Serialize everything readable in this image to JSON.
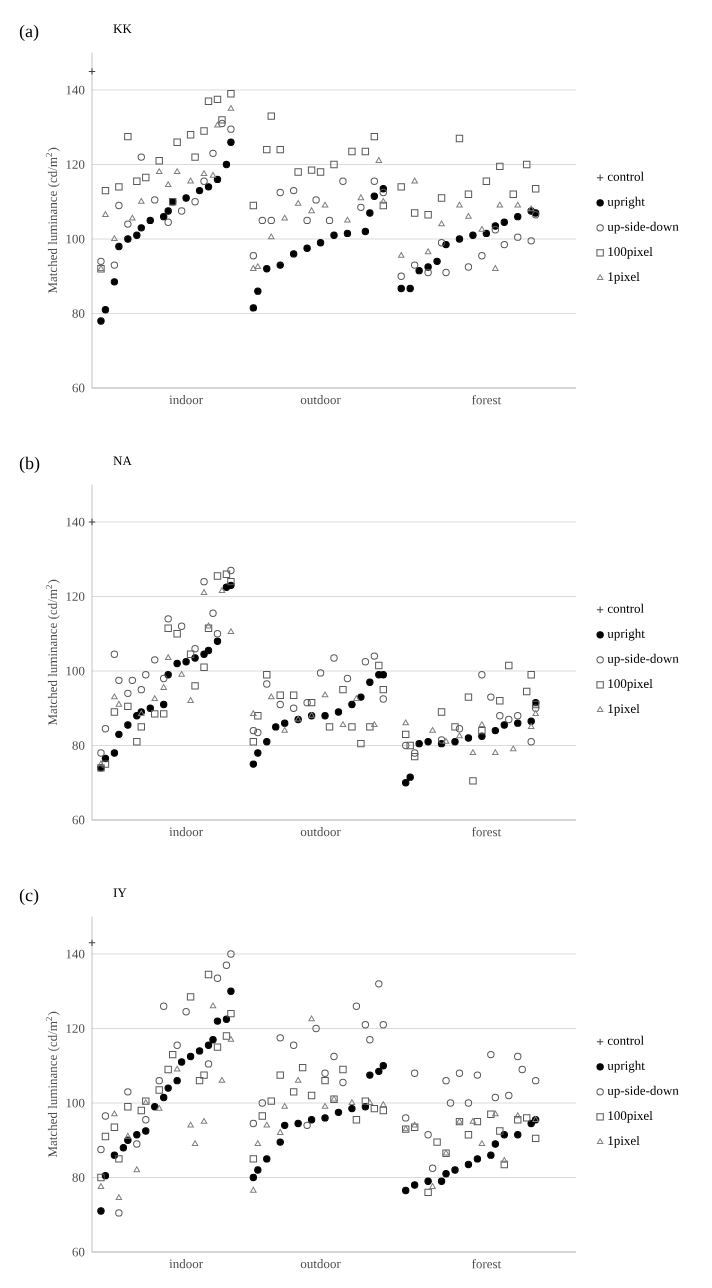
{
  "chart_data": [
    {
      "type": "scatter",
      "title": "(a)",
      "subtitle": "KK",
      "ylabel": "Matched luminance (cd/m$^{2}$)",
      "categories": [
        null,
        null,
        null,
        null,
        null,
        null,
        null,
        null,
        null,
        null,
        null,
        null,
        null,
        null,
        null,
        null,
        null,
        null,
        null,
        null,
        null,
        "indoor",
        null,
        null,
        null,
        null,
        null,
        null,
        null,
        null,
        null,
        null,
        null,
        null,
        null,
        null,
        null,
        null,
        null,
        null,
        null,
        null,
        null,
        null,
        null,
        null,
        null,
        null,
        null,
        null,
        null,
        "outdoor",
        null,
        null,
        null,
        null,
        null,
        null,
        null,
        null,
        null,
        null,
        null,
        null,
        null,
        null,
        null,
        null,
        null,
        null,
        null,
        null,
        null,
        null,
        null,
        null,
        null,
        null,
        null,
        null,
        null,
        null,
        null,
        null,
        null,
        null,
        null,
        null,
        "forest",
        null,
        null,
        null,
        null,
        null,
        null,
        null,
        null,
        null,
        null,
        null,
        null,
        null,
        null,
        null,
        null,
        null,
        null,
        null,
        null
      ],
      "ylim": [
        60,
        150
      ],
      "yticks": [
        60,
        80,
        100,
        120,
        140
      ],
      "grid": "y",
      "legend": "right",
      "series": [
        {
          "name": "control",
          "color": "#404040",
          "marker": "cross",
          "values": [
            145,
            null,
            null,
            null,
            null,
            null,
            null,
            null,
            null,
            null,
            null,
            null,
            null,
            null,
            null,
            null,
            null,
            null,
            null,
            null,
            null,
            null,
            null,
            null,
            null,
            null,
            null,
            null,
            null,
            null,
            null,
            null,
            null,
            null,
            null,
            null,
            null,
            null,
            null,
            null,
            null,
            null,
            null,
            null,
            null,
            null,
            null,
            null,
            null,
            null,
            null,
            null,
            null,
            null,
            null,
            null,
            null,
            null,
            null,
            null,
            null,
            null,
            null,
            null,
            null,
            null,
            null,
            null,
            null,
            null,
            null,
            null,
            null,
            null,
            null,
            null,
            null,
            null,
            null,
            null,
            null,
            null,
            null,
            null,
            null,
            null,
            null,
            null,
            null,
            null,
            null,
            null,
            null,
            null,
            null,
            null,
            null,
            null,
            null,
            null,
            null,
            null,
            null,
            null,
            null,
            null,
            null,
            null,
            null
          ]
        },
        {
          "name": "upright",
          "color": "#000000",
          "marker": "circle",
          "values": [
            null,
            null,
            78,
            81,
            null,
            88.5,
            98,
            null,
            100,
            null,
            101,
            103,
            null,
            105,
            null,
            null,
            106,
            107.5,
            110,
            null,
            null,
            111,
            null,
            null,
            113,
            null,
            114,
            null,
            116,
            null,
            120,
            126,
            null,
            null,
            null,
            null,
            81.5,
            86,
            null,
            92,
            null,
            null,
            93,
            null,
            null,
            96,
            null,
            null,
            97.5,
            null,
            null,
            99,
            null,
            null,
            101,
            null,
            null,
            101.5,
            null,
            null,
            null,
            102,
            107,
            111.5,
            null,
            113.5,
            null,
            null,
            null,
            86.7,
            null,
            86.7,
            null,
            91.5,
            null,
            92.5,
            null,
            94,
            null,
            98.5,
            null,
            null,
            100,
            null,
            null,
            101,
            null,
            null,
            101.5,
            null,
            103.5,
            null,
            104.5,
            null,
            null,
            106,
            null,
            null,
            107.5,
            107,
            null,
            null,
            null,
            null,
            null,
            null,
            null,
            null,
            null
          ]
        },
        {
          "name": "up-side-down",
          "color": "#595959",
          "marker": "circle",
          "values": [
            null,
            null,
            94,
            null,
            null,
            93,
            109,
            null,
            104,
            null,
            null,
            122,
            null,
            null,
            110.5,
            null,
            null,
            104.5,
            null,
            null,
            107.5,
            null,
            null,
            110,
            null,
            115.5,
            null,
            123,
            null,
            131,
            null,
            129.5,
            null,
            null,
            null,
            null,
            95.5,
            null,
            105,
            null,
            105,
            null,
            112.5,
            null,
            null,
            113,
            null,
            null,
            105,
            null,
            110.5,
            null,
            null,
            105,
            null,
            null,
            115.5,
            null,
            null,
            null,
            108.5,
            null,
            null,
            115.5,
            null,
            112.5,
            null,
            null,
            null,
            90,
            null,
            null,
            93,
            null,
            null,
            91,
            null,
            null,
            99,
            91,
            null,
            null,
            null,
            null,
            92.5,
            null,
            null,
            95.5,
            null,
            null,
            102.5,
            null,
            98.5,
            null,
            null,
            100.5,
            null,
            null,
            99.5,
            106.5,
            null,
            null,
            null,
            null,
            null,
            null,
            null,
            null,
            null
          ]
        },
        {
          "name": "100pixel",
          "color": "#595959",
          "marker": "square",
          "values": [
            null,
            null,
            92,
            113,
            null,
            null,
            114,
            null,
            127.5,
            null,
            115.5,
            null,
            116.5,
            null,
            null,
            121,
            null,
            null,
            110,
            126,
            null,
            null,
            128,
            122,
            null,
            129,
            137,
            null,
            137.5,
            132,
            null,
            139,
            null,
            null,
            null,
            null,
            109,
            null,
            null,
            124,
            133,
            null,
            124,
            null,
            null,
            null,
            118,
            null,
            null,
            118.5,
            null,
            118,
            null,
            null,
            120,
            null,
            null,
            null,
            123.5,
            null,
            null,
            123.5,
            null,
            127.5,
            null,
            109,
            null,
            null,
            null,
            114,
            null,
            null,
            107,
            null,
            null,
            106.5,
            null,
            null,
            111,
            null,
            null,
            null,
            127,
            null,
            112,
            null,
            null,
            null,
            115.5,
            null,
            null,
            119.5,
            null,
            null,
            112,
            null,
            null,
            120,
            null,
            113.5,
            null,
            null,
            null,
            null,
            null,
            null,
            null,
            null,
            null
          ]
        },
        {
          "name": "1pixel",
          "color": "#7f7f7f",
          "marker": "triangle",
          "values": [
            null,
            null,
            92,
            106.5,
            null,
            100,
            null,
            null,
            null,
            105.5,
            null,
            110,
            null,
            null,
            null,
            118,
            null,
            114.5,
            null,
            118,
            null,
            null,
            115.5,
            null,
            null,
            117.5,
            null,
            117,
            130.5,
            null,
            null,
            135,
            null,
            null,
            null,
            null,
            92,
            92.5,
            null,
            null,
            100.5,
            null,
            null,
            105.5,
            null,
            null,
            109.5,
            null,
            null,
            107.5,
            null,
            null,
            109,
            null,
            null,
            null,
            null,
            105,
            null,
            null,
            111,
            null,
            null,
            null,
            121,
            110,
            null,
            null,
            null,
            95.5,
            null,
            null,
            115.5,
            null,
            null,
            96.5,
            null,
            null,
            104,
            null,
            null,
            null,
            109,
            null,
            106,
            null,
            null,
            102.5,
            null,
            null,
            92,
            109,
            null,
            null,
            null,
            109,
            null,
            null,
            108,
            null,
            null,
            null,
            null,
            null,
            null,
            null,
            null,
            null,
            null
          ]
        }
      ]
    },
    {
      "type": "scatter",
      "title": "(b)",
      "subtitle": "NA",
      "ylabel": "Matched luminance (cd/m$^{2}$)",
      "categories": [
        null,
        null,
        null,
        null,
        null,
        null,
        null,
        null,
        null,
        null,
        null,
        null,
        null,
        null,
        null,
        null,
        null,
        null,
        null,
        null,
        null,
        "indoor",
        null,
        null,
        null,
        null,
        null,
        null,
        null,
        null,
        null,
        null,
        null,
        null,
        null,
        null,
        null,
        null,
        null,
        null,
        null,
        null,
        null,
        null,
        null,
        null,
        null,
        null,
        null,
        null,
        null,
        "outdoor",
        null,
        null,
        null,
        null,
        null,
        null,
        null,
        null,
        null,
        null,
        null,
        null,
        null,
        null,
        null,
        null,
        null,
        null,
        null,
        null,
        null,
        null,
        null,
        null,
        null,
        null,
        null,
        null,
        null,
        null,
        null,
        null,
        null,
        null,
        null,
        null,
        "forest",
        null,
        null,
        null,
        null,
        null,
        null,
        null,
        null,
        null,
        null,
        null,
        null,
        null,
        null,
        null,
        null,
        null,
        null,
        null,
        null
      ],
      "ylim": [
        60,
        150
      ],
      "yticks": [
        60,
        80,
        100,
        120,
        140
      ],
      "grid": "y",
      "legend": "right",
      "series": [
        {
          "name": "control",
          "color": "#404040",
          "marker": "cross",
          "values": [
            140,
            null,
            null,
            null,
            null,
            null,
            null,
            null,
            null,
            null,
            null,
            null,
            null,
            null,
            null,
            null,
            null,
            null,
            null,
            null,
            null,
            null,
            null,
            null,
            null,
            null,
            null,
            null,
            null,
            null,
            null,
            null,
            null,
            null,
            null,
            null,
            null,
            null,
            null,
            null,
            null,
            null,
            null,
            null,
            null,
            null,
            null,
            null,
            null,
            null,
            null,
            null,
            null,
            null,
            null,
            null,
            null,
            null,
            null,
            null,
            null,
            null,
            null,
            null,
            null,
            null,
            null,
            null,
            null,
            null,
            null,
            null,
            null,
            null,
            null,
            null,
            null,
            null,
            null,
            null,
            null,
            null,
            null,
            null,
            null,
            null,
            null,
            null,
            null,
            null,
            null,
            null,
            null,
            null,
            null,
            null,
            null,
            null,
            null,
            null,
            null,
            null,
            null,
            null,
            null,
            null,
            null,
            null,
            null
          ]
        },
        {
          "name": "upright",
          "color": "#000000",
          "marker": "circle",
          "values": [
            null,
            null,
            74,
            76.5,
            null,
            78,
            83,
            null,
            85.5,
            null,
            88,
            89,
            null,
            90,
            null,
            null,
            91,
            99,
            null,
            102,
            null,
            102.5,
            null,
            103.5,
            null,
            104.5,
            105.5,
            null,
            108,
            null,
            122.5,
            123,
            null,
            null,
            null,
            null,
            75,
            78,
            null,
            81,
            null,
            85,
            null,
            86,
            null,
            null,
            87,
            null,
            null,
            88,
            null,
            null,
            88,
            null,
            null,
            89,
            null,
            null,
            91,
            null,
            93,
            null,
            97,
            null,
            99,
            99,
            null,
            null,
            null,
            null,
            70,
            71.5,
            null,
            80.5,
            null,
            81,
            null,
            null,
            80.5,
            null,
            null,
            81,
            null,
            null,
            82,
            null,
            null,
            82.5,
            null,
            null,
            84,
            null,
            85.5,
            null,
            null,
            86,
            null,
            null,
            86.5,
            91.5,
            null,
            null,
            null,
            null,
            null,
            null,
            null,
            null,
            null
          ]
        },
        {
          "name": "up-side-down",
          "color": "#595959",
          "marker": "circle",
          "values": [
            null,
            null,
            78,
            84.5,
            null,
            104.5,
            97.5,
            null,
            94,
            97.5,
            null,
            95,
            99,
            null,
            103,
            null,
            98,
            114,
            null,
            null,
            112,
            null,
            null,
            106,
            null,
            124,
            null,
            115.5,
            110,
            null,
            null,
            127,
            null,
            null,
            null,
            null,
            84,
            83.5,
            null,
            96.5,
            null,
            null,
            91,
            null,
            null,
            90,
            null,
            null,
            91.5,
            null,
            null,
            99.5,
            null,
            null,
            103.5,
            null,
            null,
            98,
            null,
            null,
            null,
            102.5,
            null,
            104,
            null,
            92.5,
            null,
            null,
            null,
            null,
            80,
            null,
            78,
            null,
            null,
            null,
            null,
            null,
            81.5,
            null,
            null,
            null,
            84.5,
            null,
            null,
            null,
            null,
            99,
            null,
            93,
            null,
            88,
            null,
            87,
            null,
            88,
            null,
            null,
            81,
            90,
            null,
            null,
            null,
            null,
            null,
            null,
            null,
            null,
            null
          ]
        },
        {
          "name": "100pixel",
          "color": "#595959",
          "marker": "square",
          "values": [
            null,
            null,
            74,
            75,
            null,
            89,
            null,
            null,
            90.5,
            null,
            81,
            85,
            null,
            null,
            88.5,
            null,
            88.5,
            111.5,
            null,
            110,
            null,
            null,
            104.5,
            96,
            null,
            101,
            111.5,
            null,
            125.5,
            null,
            126,
            124,
            null,
            null,
            null,
            null,
            81,
            88,
            null,
            99,
            null,
            null,
            93.5,
            null,
            null,
            93.5,
            null,
            null,
            null,
            91.5,
            null,
            null,
            null,
            85,
            null,
            null,
            95,
            null,
            85,
            null,
            80.5,
            null,
            85,
            null,
            101.5,
            95,
            null,
            null,
            null,
            null,
            83,
            80,
            77,
            null,
            null,
            null,
            null,
            null,
            89,
            null,
            null,
            85,
            null,
            null,
            93,
            70.5,
            null,
            84,
            null,
            null,
            null,
            92,
            null,
            101.5,
            null,
            null,
            null,
            94.5,
            99,
            91,
            null,
            null,
            null,
            null,
            null,
            null,
            null,
            null,
            null
          ]
        },
        {
          "name": "1pixel",
          "color": "#7f7f7f",
          "marker": "triangle",
          "values": [
            null,
            null,
            75,
            null,
            null,
            93,
            91,
            null,
            null,
            null,
            null,
            88.5,
            null,
            null,
            92.5,
            null,
            95.5,
            103.5,
            null,
            null,
            99,
            null,
            92,
            null,
            null,
            121,
            112,
            null,
            null,
            121.5,
            null,
            110.5,
            null,
            null,
            null,
            null,
            88.5,
            null,
            null,
            null,
            93,
            null,
            null,
            84,
            null,
            null,
            87,
            null,
            null,
            88,
            null,
            null,
            93.5,
            null,
            null,
            null,
            85.5,
            null,
            null,
            92.5,
            null,
            null,
            null,
            85.5,
            null,
            null,
            null,
            null,
            null,
            null,
            86,
            null,
            null,
            null,
            null,
            null,
            84,
            null,
            null,
            81,
            null,
            null,
            82.5,
            null,
            null,
            78,
            null,
            85.5,
            null,
            null,
            78,
            null,
            null,
            null,
            79,
            null,
            null,
            null,
            85,
            88.5,
            null,
            null,
            null,
            null,
            null,
            null,
            null,
            null,
            null
          ]
        }
      ]
    },
    {
      "type": "scatter",
      "title": "(c)",
      "subtitle": "IY",
      "ylabel": "Matched luminance (cd/m$^{2}$)",
      "categories": [
        null,
        null,
        null,
        null,
        null,
        null,
        null,
        null,
        null,
        null,
        null,
        null,
        null,
        null,
        null,
        null,
        null,
        null,
        null,
        null,
        null,
        "indoor",
        null,
        null,
        null,
        null,
        null,
        null,
        null,
        null,
        null,
        null,
        null,
        null,
        null,
        null,
        null,
        null,
        null,
        null,
        null,
        null,
        null,
        null,
        null,
        null,
        null,
        null,
        null,
        null,
        null,
        "outdoor",
        null,
        null,
        null,
        null,
        null,
        null,
        null,
        null,
        null,
        null,
        null,
        null,
        null,
        null,
        null,
        null,
        null,
        null,
        null,
        null,
        null,
        null,
        null,
        null,
        null,
        null,
        null,
        null,
        null,
        null,
        null,
        null,
        null,
        null,
        null,
        null,
        "forest",
        null,
        null,
        null,
        null,
        null,
        null,
        null,
        null,
        null,
        null,
        null,
        null,
        null,
        null,
        null,
        null,
        null,
        null,
        null,
        null
      ],
      "ylim": [
        60,
        150
      ],
      "yticks": [
        60,
        80,
        100,
        120,
        140
      ],
      "grid": "y",
      "legend": "right",
      "series": [
        {
          "name": "control",
          "color": "#404040",
          "marker": "cross",
          "values": [
            143,
            null,
            null,
            null,
            null,
            null,
            null,
            null,
            null,
            null,
            null,
            null,
            null,
            null,
            null,
            null,
            null,
            null,
            null,
            null,
            null,
            null,
            null,
            null,
            null,
            null,
            null,
            null,
            null,
            null,
            null,
            null,
            null,
            null,
            null,
            null,
            null,
            null,
            null,
            null,
            null,
            null,
            null,
            null,
            null,
            null,
            null,
            null,
            null,
            null,
            null,
            null,
            null,
            null,
            null,
            null,
            null,
            null,
            null,
            null,
            null,
            null,
            null,
            null,
            null,
            null,
            null,
            null,
            null,
            null,
            null,
            null,
            null,
            null,
            null,
            null,
            null,
            null,
            null,
            null,
            null,
            null,
            null,
            null,
            null,
            null,
            null,
            null,
            null,
            null,
            null,
            null,
            null,
            null,
            null,
            null,
            null,
            null,
            null,
            null,
            null,
            null,
            null,
            null,
            null,
            null,
            null,
            null,
            null
          ]
        },
        {
          "name": "upright",
          "color": "#000000",
          "marker": "circle",
          "values": [
            null,
            null,
            71,
            80.5,
            null,
            86,
            null,
            88,
            90,
            null,
            91.5,
            null,
            92.5,
            null,
            99,
            null,
            101.5,
            104,
            null,
            106,
            111,
            null,
            112.5,
            null,
            114,
            null,
            115.5,
            117,
            122,
            null,
            122.5,
            130,
            null,
            null,
            null,
            null,
            80,
            82,
            null,
            85,
            null,
            null,
            89.5,
            94,
            null,
            null,
            94.5,
            null,
            null,
            95.5,
            null,
            null,
            96,
            null,
            null,
            97.5,
            null,
            null,
            98.5,
            null,
            null,
            99,
            107.5,
            null,
            108.5,
            110,
            null,
            null,
            null,
            null,
            76.5,
            null,
            78,
            null,
            null,
            79,
            null,
            null,
            79,
            81,
            null,
            82,
            null,
            null,
            83.5,
            null,
            85,
            null,
            null,
            86,
            89,
            null,
            91.5,
            null,
            null,
            91.5,
            null,
            null,
            94.5,
            95.5,
            null,
            null,
            null,
            null,
            null,
            null,
            null,
            null,
            null
          ]
        },
        {
          "name": "up-side-down",
          "color": "#595959",
          "marker": "circle",
          "values": [
            null,
            null,
            87.5,
            96.5,
            null,
            null,
            70.5,
            null,
            103,
            null,
            89,
            null,
            95.5,
            null,
            null,
            106,
            126,
            null,
            null,
            115.5,
            null,
            124.5,
            null,
            null,
            null,
            null,
            110.5,
            null,
            133.5,
            null,
            137,
            140,
            null,
            null,
            null,
            null,
            94.5,
            null,
            100,
            null,
            null,
            null,
            117.5,
            null,
            null,
            115.5,
            null,
            null,
            94,
            null,
            120,
            null,
            108,
            null,
            112.5,
            null,
            105.5,
            null,
            null,
            126,
            null,
            121,
            117,
            null,
            132,
            121,
            null,
            null,
            null,
            null,
            96,
            null,
            108,
            null,
            null,
            91.5,
            82.5,
            null,
            null,
            106,
            100,
            null,
            108,
            null,
            100,
            null,
            107.5,
            null,
            null,
            113,
            101.5,
            null,
            null,
            102,
            null,
            112.5,
            109,
            null,
            null,
            106,
            null,
            null,
            null,
            null,
            null,
            null,
            null,
            null,
            null
          ]
        },
        {
          "name": "100pixel",
          "color": "#595959",
          "marker": "square",
          "values": [
            null,
            null,
            80,
            91,
            null,
            93.5,
            85,
            null,
            99,
            null,
            null,
            98,
            100.5,
            null,
            null,
            103.5,
            null,
            109,
            113,
            null,
            null,
            null,
            128.5,
            null,
            106,
            107.5,
            134.5,
            null,
            115,
            null,
            118,
            124,
            null,
            null,
            null,
            null,
            85,
            null,
            96.5,
            null,
            100.5,
            null,
            107.5,
            null,
            null,
            103,
            null,
            109.5,
            null,
            102,
            null,
            null,
            106,
            null,
            101,
            null,
            109,
            null,
            null,
            95.5,
            null,
            100.5,
            null,
            98.5,
            null,
            98,
            null,
            null,
            null,
            null,
            93,
            null,
            93.5,
            null,
            null,
            76,
            null,
            89.5,
            null,
            86.5,
            null,
            null,
            95,
            null,
            91.5,
            null,
            95,
            null,
            null,
            97,
            null,
            92.5,
            83.5,
            null,
            null,
            95.5,
            null,
            96,
            null,
            90.5,
            null,
            null,
            null,
            null,
            null,
            null,
            null,
            null,
            null
          ]
        },
        {
          "name": "1pixel",
          "color": "#7f7f7f",
          "marker": "triangle",
          "values": [
            null,
            null,
            77.5,
            null,
            null,
            97,
            74.5,
            null,
            91,
            null,
            82,
            null,
            100,
            null,
            null,
            98.5,
            null,
            null,
            null,
            109,
            null,
            null,
            94,
            89,
            null,
            95,
            null,
            126,
            null,
            106,
            null,
            117,
            null,
            null,
            null,
            null,
            76.5,
            89,
            null,
            94,
            null,
            null,
            92,
            99,
            null,
            null,
            106,
            null,
            null,
            122.5,
            null,
            null,
            99,
            null,
            101,
            null,
            null,
            null,
            100,
            null,
            null,
            null,
            100,
            null,
            null,
            99.5,
            null,
            null,
            null,
            null,
            93,
            null,
            94,
            null,
            null,
            null,
            77.5,
            null,
            null,
            86.5,
            null,
            null,
            95,
            null,
            null,
            95,
            null,
            89,
            null,
            null,
            97,
            null,
            84.5,
            null,
            null,
            96.5,
            null,
            null,
            null,
            95.5,
            null,
            null,
            null,
            null,
            null,
            null,
            null,
            null,
            null
          ]
        }
      ]
    }
  ]
}
